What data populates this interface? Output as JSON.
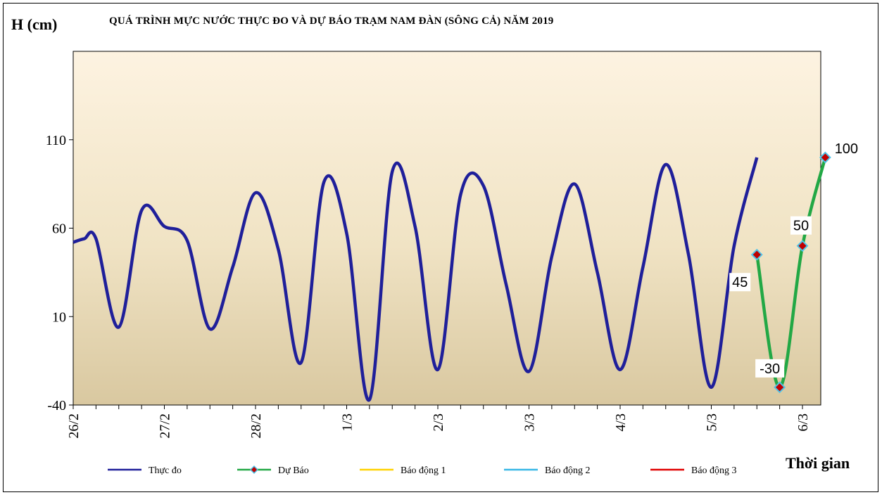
{
  "chart_data": {
    "type": "line",
    "title": "QUÁ TRÌNH MỰC NƯỚC THỰC ĐO VÀ DỰ BÁO TRẠM  NAM  ĐÀN (SÔNG CẢ) NĂM 2019",
    "ylabel": "H (cm)",
    "xlabel": "Thời gian",
    "ylim": [
      -40,
      160
    ],
    "yticks": [
      "110",
      "60",
      "10",
      "-40"
    ],
    "ytick_values": [
      110,
      60,
      10,
      -40
    ],
    "xticks": [
      "26/2",
      "27/2",
      "28/2",
      "1/3",
      "2/3",
      "3/3",
      "4/3",
      "5/3",
      "6/3"
    ],
    "grid": false,
    "legend_position": "bottom",
    "series": [
      {
        "name": "Thực đo",
        "color": "#1f1f9a",
        "x_days": [
          0,
          0.12,
          0.25,
          0.5,
          0.75,
          1.0,
          1.25,
          1.5,
          1.75,
          2.0,
          2.25,
          2.5,
          2.75,
          3.0,
          3.25,
          3.5,
          3.75,
          4.0,
          4.25,
          4.5,
          4.75,
          5.0,
          5.25,
          5.5,
          5.75,
          6.0,
          6.25,
          6.5,
          6.75,
          7.0,
          7.25,
          7.5
        ],
        "values": [
          52,
          54,
          54,
          4,
          70,
          61,
          53,
          3,
          38,
          80,
          48,
          -16,
          86,
          57,
          -37,
          92,
          61,
          -20,
          79,
          84,
          28,
          -21,
          44,
          85,
          35,
          -20,
          38,
          96,
          45,
          -30,
          50,
          100
        ]
      },
      {
        "name": "Dự Báo",
        "color": "#22a845",
        "x_days": [
          7.5,
          7.75,
          8.0,
          8.25
        ],
        "values": [
          45,
          -30,
          50,
          100
        ],
        "labels": [
          "45",
          "-30",
          "50",
          "100"
        ]
      },
      {
        "name": "Báo động 1",
        "color": "#ffd200",
        "values": []
      },
      {
        "name": "Báo động 2",
        "color": "#37b7e6",
        "values": []
      },
      {
        "name": "Báo động 3",
        "color": "#e00000",
        "values": []
      }
    ]
  }
}
